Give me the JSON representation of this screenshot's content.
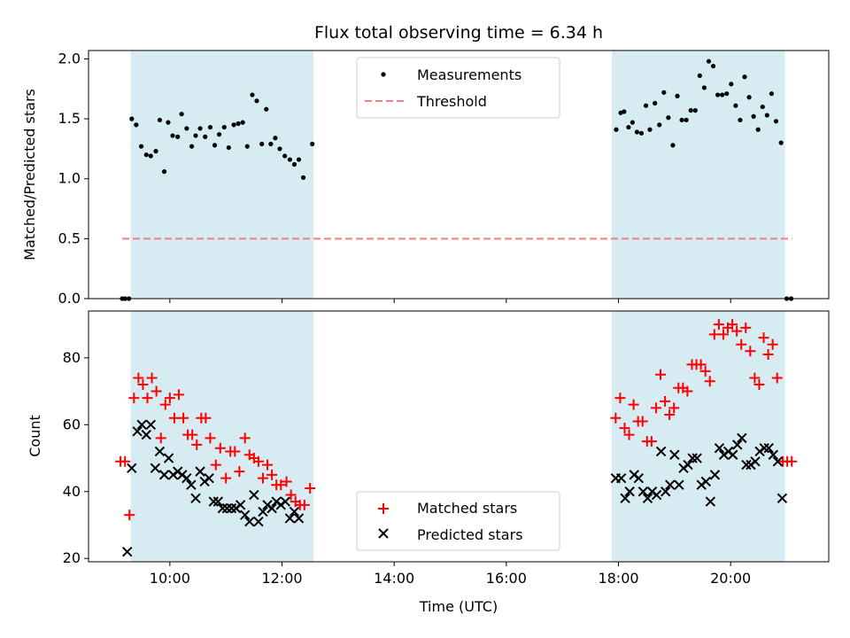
{
  "colors": {
    "span": "#add8e6",
    "measurements": "#000000",
    "threshold": "#f08080",
    "matched": "#ff0000",
    "predicted": "#000000"
  },
  "chart_data": [
    {
      "type": "scatter",
      "title": "Flux total observing time = 6.34 h",
      "xlabel": "",
      "ylabel": "Matched/Predicted stars",
      "xlim": [
        8.55,
        21.75
      ],
      "ylim": [
        0.0,
        2.07
      ],
      "yticks": [
        0.0,
        0.5,
        1.0,
        1.5,
        2.0
      ],
      "ytick_labels": [
        "0.0",
        "0.5",
        "1.0",
        "1.5",
        "2.0"
      ],
      "xticks": [
        10,
        12,
        14,
        16,
        18,
        20
      ],
      "observing_spans": [
        [
          9.3,
          12.56
        ],
        [
          17.88,
          20.97
        ]
      ],
      "legend": {
        "placement": "upper center",
        "entries": [
          "Measurements",
          "Threshold"
        ]
      },
      "threshold": {
        "name": "Threshold",
        "y": 0.5,
        "x_range": [
          9.15,
          21.1
        ]
      },
      "series": [
        {
          "name": "Measurements",
          "points": [
            [
              9.15,
              0.0
            ],
            [
              9.2,
              0.0
            ],
            [
              9.27,
              0.0
            ],
            [
              9.32,
              1.5
            ],
            [
              9.4,
              1.45
            ],
            [
              9.49,
              1.27
            ],
            [
              9.58,
              1.2
            ],
            [
              9.66,
              1.19
            ],
            [
              9.75,
              1.23
            ],
            [
              9.82,
              1.49
            ],
            [
              9.9,
              1.06
            ],
            [
              9.97,
              1.47
            ],
            [
              10.05,
              1.36
            ],
            [
              10.14,
              1.35
            ],
            [
              10.21,
              1.54
            ],
            [
              10.3,
              1.42
            ],
            [
              10.39,
              1.27
            ],
            [
              10.46,
              1.36
            ],
            [
              10.54,
              1.42
            ],
            [
              10.63,
              1.35
            ],
            [
              10.72,
              1.43
            ],
            [
              10.8,
              1.28
            ],
            [
              10.88,
              1.37
            ],
            [
              10.97,
              1.43
            ],
            [
              11.05,
              1.26
            ],
            [
              11.14,
              1.45
            ],
            [
              11.22,
              1.46
            ],
            [
              11.3,
              1.47
            ],
            [
              11.38,
              1.27
            ],
            [
              11.47,
              1.7
            ],
            [
              11.55,
              1.65
            ],
            [
              11.64,
              1.29
            ],
            [
              11.72,
              1.58
            ],
            [
              11.8,
              1.29
            ],
            [
              11.88,
              1.34
            ],
            [
              11.96,
              1.25
            ],
            [
              12.05,
              1.19
            ],
            [
              12.14,
              1.16
            ],
            [
              12.22,
              1.12
            ],
            [
              12.3,
              1.16
            ],
            [
              12.38,
              1.01
            ],
            [
              12.54,
              1.29
            ],
            [
              17.96,
              1.41
            ],
            [
              18.04,
              1.55
            ],
            [
              18.1,
              1.56
            ],
            [
              18.18,
              1.43
            ],
            [
              18.25,
              1.47
            ],
            [
              18.33,
              1.39
            ],
            [
              18.41,
              1.38
            ],
            [
              18.49,
              1.61
            ],
            [
              18.56,
              1.41
            ],
            [
              18.65,
              1.63
            ],
            [
              18.73,
              1.45
            ],
            [
              18.81,
              1.72
            ],
            [
              18.89,
              1.51
            ],
            [
              18.97,
              1.28
            ],
            [
              19.05,
              1.69
            ],
            [
              19.13,
              1.49
            ],
            [
              19.21,
              1.49
            ],
            [
              19.29,
              1.57
            ],
            [
              19.37,
              1.57
            ],
            [
              19.45,
              1.86
            ],
            [
              19.53,
              1.76
            ],
            [
              19.61,
              1.98
            ],
            [
              19.69,
              1.94
            ],
            [
              19.77,
              1.7
            ],
            [
              19.85,
              1.7
            ],
            [
              19.93,
              1.71
            ],
            [
              20.01,
              1.79
            ],
            [
              20.09,
              1.61
            ],
            [
              20.17,
              1.49
            ],
            [
              20.25,
              1.85
            ],
            [
              20.33,
              1.68
            ],
            [
              20.41,
              1.52
            ],
            [
              20.49,
              1.41
            ],
            [
              20.57,
              1.6
            ],
            [
              20.65,
              1.53
            ],
            [
              20.73,
              1.71
            ],
            [
              20.81,
              1.48
            ],
            [
              20.9,
              1.3
            ],
            [
              21.0,
              0.0
            ],
            [
              21.08,
              0.0
            ]
          ]
        }
      ]
    },
    {
      "type": "scatter",
      "title": "",
      "xlabel": "Time (UTC)",
      "ylabel": "Count",
      "xlim": [
        8.55,
        21.75
      ],
      "ylim": [
        19,
        94
      ],
      "yticks": [
        20,
        40,
        60,
        80
      ],
      "ytick_labels": [
        "20",
        "40",
        "60",
        "80"
      ],
      "xticks": [
        10,
        12,
        14,
        16,
        18,
        20
      ],
      "xtick_labels": [
        "10:00",
        "12:00",
        "14:00",
        "16:00",
        "18:00",
        "20:00"
      ],
      "observing_spans": [
        [
          9.3,
          12.56
        ],
        [
          17.88,
          20.97
        ]
      ],
      "legend": {
        "placement": "lower center",
        "entries": [
          "Matched stars",
          "Predicted stars"
        ]
      },
      "series": [
        {
          "name": "Matched stars",
          "marker": "+",
          "points": [
            [
              9.12,
              49
            ],
            [
              9.2,
              49
            ],
            [
              9.28,
              33
            ],
            [
              9.36,
              68
            ],
            [
              9.44,
              74
            ],
            [
              9.52,
              72
            ],
            [
              9.6,
              68
            ],
            [
              9.68,
              74
            ],
            [
              9.76,
              70
            ],
            [
              9.84,
              56
            ],
            [
              9.92,
              66
            ],
            [
              10.0,
              68
            ],
            [
              10.08,
              62
            ],
            [
              10.16,
              69
            ],
            [
              10.24,
              62
            ],
            [
              10.32,
              57
            ],
            [
              10.4,
              57
            ],
            [
              10.48,
              54
            ],
            [
              10.56,
              62
            ],
            [
              10.64,
              62
            ],
            [
              10.72,
              56
            ],
            [
              10.82,
              48
            ],
            [
              10.9,
              53
            ],
            [
              11.0,
              44
            ],
            [
              11.08,
              52
            ],
            [
              11.16,
              52
            ],
            [
              11.24,
              46
            ],
            [
              11.34,
              56
            ],
            [
              11.42,
              51
            ],
            [
              11.5,
              50
            ],
            [
              11.58,
              49
            ],
            [
              11.66,
              44
            ],
            [
              11.74,
              48
            ],
            [
              11.82,
              45
            ],
            [
              11.9,
              42
            ],
            [
              11.98,
              42
            ],
            [
              12.08,
              43
            ],
            [
              12.16,
              39
            ],
            [
              12.24,
              37
            ],
            [
              12.32,
              36
            ],
            [
              12.4,
              36
            ],
            [
              12.5,
              41
            ],
            [
              17.95,
              62
            ],
            [
              18.03,
              68
            ],
            [
              18.11,
              59
            ],
            [
              18.19,
              57
            ],
            [
              18.27,
              66
            ],
            [
              18.35,
              61
            ],
            [
              18.43,
              61
            ],
            [
              18.51,
              55
            ],
            [
              18.59,
              55
            ],
            [
              18.67,
              65
            ],
            [
              18.75,
              75
            ],
            [
              18.83,
              67
            ],
            [
              18.91,
              63
            ],
            [
              18.99,
              65
            ],
            [
              19.07,
              71
            ],
            [
              19.15,
              71
            ],
            [
              19.23,
              70
            ],
            [
              19.31,
              78
            ],
            [
              19.39,
              78
            ],
            [
              19.47,
              78
            ],
            [
              19.55,
              76
            ],
            [
              19.63,
              73
            ],
            [
              19.71,
              87
            ],
            [
              19.79,
              90
            ],
            [
              19.87,
              87
            ],
            [
              19.95,
              89
            ],
            [
              20.03,
              90
            ],
            [
              20.11,
              88
            ],
            [
              20.19,
              84
            ],
            [
              20.27,
              89
            ],
            [
              20.35,
              82
            ],
            [
              20.43,
              74
            ],
            [
              20.51,
              72
            ],
            [
              20.59,
              86
            ],
            [
              20.67,
              81
            ],
            [
              20.75,
              84
            ],
            [
              20.83,
              74
            ],
            [
              20.93,
              49
            ],
            [
              21.01,
              49
            ],
            [
              21.09,
              49
            ]
          ]
        },
        {
          "name": "Predicted stars",
          "marker": "x",
          "points": [
            [
              9.24,
              22
            ],
            [
              9.32,
              47
            ],
            [
              9.42,
              58
            ],
            [
              9.5,
              60
            ],
            [
              9.58,
              57
            ],
            [
              9.66,
              60
            ],
            [
              9.74,
              47
            ],
            [
              9.82,
              52
            ],
            [
              9.9,
              45
            ],
            [
              9.98,
              50
            ],
            [
              10.06,
              45
            ],
            [
              10.14,
              46
            ],
            [
              10.22,
              45
            ],
            [
              10.3,
              44
            ],
            [
              10.38,
              42
            ],
            [
              10.46,
              38
            ],
            [
              10.54,
              46
            ],
            [
              10.62,
              43
            ],
            [
              10.7,
              44
            ],
            [
              10.78,
              37
            ],
            [
              10.86,
              37
            ],
            [
              10.94,
              35
            ],
            [
              11.02,
              35
            ],
            [
              11.1,
              35
            ],
            [
              11.18,
              35
            ],
            [
              11.26,
              36
            ],
            [
              11.34,
              33
            ],
            [
              11.42,
              31
            ],
            [
              11.5,
              39
            ],
            [
              11.58,
              31
            ],
            [
              11.66,
              34
            ],
            [
              11.74,
              36
            ],
            [
              11.82,
              35
            ],
            [
              11.9,
              37
            ],
            [
              11.98,
              36
            ],
            [
              12.06,
              37
            ],
            [
              12.14,
              32
            ],
            [
              12.22,
              34
            ],
            [
              12.3,
              32
            ],
            [
              17.95,
              44
            ],
            [
              18.05,
              44
            ],
            [
              18.12,
              38
            ],
            [
              18.2,
              40
            ],
            [
              18.28,
              45
            ],
            [
              18.36,
              44
            ],
            [
              18.44,
              40
            ],
            [
              18.52,
              38
            ],
            [
              18.6,
              40
            ],
            [
              18.68,
              39
            ],
            [
              18.76,
              52
            ],
            [
              18.84,
              40
            ],
            [
              18.92,
              42
            ],
            [
              19.0,
              51
            ],
            [
              19.08,
              42
            ],
            [
              19.16,
              47
            ],
            [
              19.24,
              48
            ],
            [
              19.32,
              50
            ],
            [
              19.4,
              50
            ],
            [
              19.48,
              42
            ],
            [
              19.56,
              43
            ],
            [
              19.64,
              37
            ],
            [
              19.72,
              45
            ],
            [
              19.8,
              53
            ],
            [
              19.88,
              51
            ],
            [
              19.96,
              52
            ],
            [
              20.04,
              51
            ],
            [
              20.12,
              54
            ],
            [
              20.2,
              56
            ],
            [
              20.28,
              48
            ],
            [
              20.36,
              48
            ],
            [
              20.44,
              49
            ],
            [
              20.52,
              52
            ],
            [
              20.6,
              53
            ],
            [
              20.68,
              53
            ],
            [
              20.76,
              51
            ],
            [
              20.84,
              49
            ],
            [
              20.92,
              38
            ]
          ]
        }
      ]
    }
  ]
}
